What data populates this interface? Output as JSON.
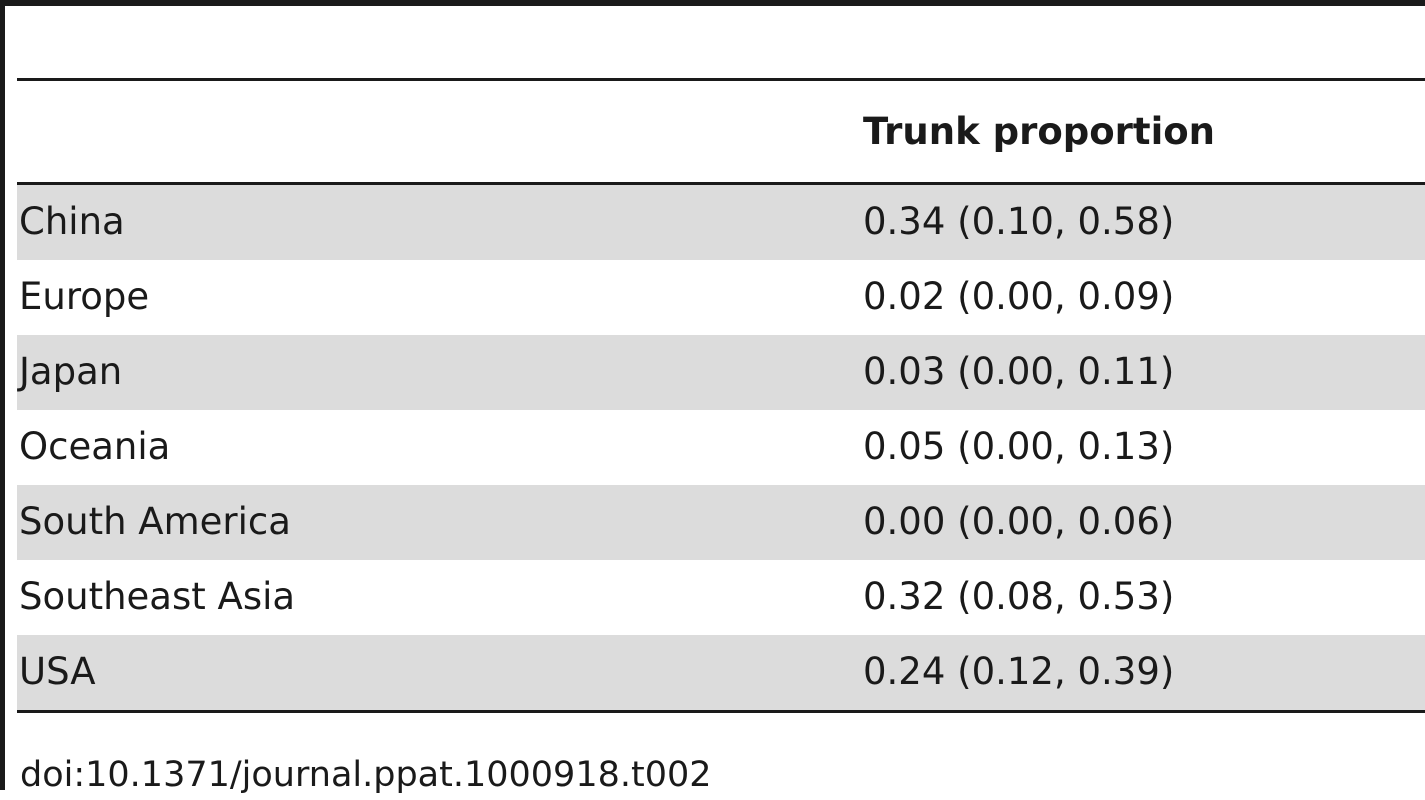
{
  "table": {
    "header": {
      "region": "",
      "value": "Trunk proportion"
    },
    "rows": [
      {
        "region": "China",
        "value": "0.34 (0.10, 0.58)"
      },
      {
        "region": "Europe",
        "value": "0.02 (0.00, 0.09)"
      },
      {
        "region": "Japan",
        "value": "0.03 (0.00, 0.11)"
      },
      {
        "region": "Oceania",
        "value": "0.05 (0.00, 0.13)"
      },
      {
        "region": "South America",
        "value": "0.00 (0.00, 0.06)"
      },
      {
        "region": "Southeast Asia",
        "value": "0.32 (0.08, 0.53)"
      },
      {
        "region": "USA",
        "value": "0.24 (0.12, 0.39)"
      }
    ]
  },
  "footer": {
    "doi": "doi:10.1371/journal.ppat.1000918.t002"
  },
  "colors": {
    "shaded_row": "#dcdcdc",
    "rule": "#1a1a1a"
  }
}
